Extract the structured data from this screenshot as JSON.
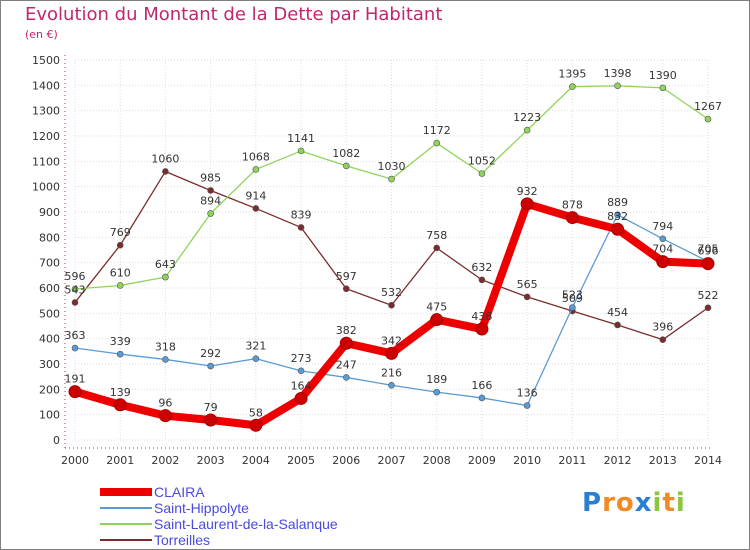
{
  "chart_data": {
    "type": "line",
    "title": "Evolution du Montant de la Dette par Habitant",
    "subtitle": "(en €)",
    "x": [
      "2000",
      "2001",
      "2002",
      "2003",
      "2004",
      "2005",
      "2006",
      "2007",
      "2008",
      "2009",
      "2010",
      "2011",
      "2012",
      "2013",
      "2014"
    ],
    "ylim": [
      0,
      1500
    ],
    "yticks": [
      0,
      100,
      200,
      300,
      400,
      500,
      600,
      700,
      800,
      900,
      1000,
      1100,
      1200,
      1300,
      1400,
      1500
    ],
    "grid": true,
    "legend_position": "bottom-left",
    "series": [
      {
        "name": "CLAIRA",
        "color": "#ee0000",
        "values": [
          191,
          139,
          96,
          79,
          58,
          164,
          382,
          342,
          475,
          438,
          932,
          878,
          832,
          704,
          696
        ]
      },
      {
        "name": "Saint-Hippolyte",
        "color": "#5b9bd5",
        "values": [
          363,
          339,
          318,
          292,
          321,
          273,
          247,
          216,
          189,
          166,
          136,
          523,
          889,
          794,
          705
        ]
      },
      {
        "name": "Saint-Laurent-de-la-Salanque",
        "color": "#8fd45a",
        "values": [
          596,
          610,
          643,
          894,
          1068,
          1141,
          1082,
          1030,
          1172,
          1052,
          1223,
          1395,
          1398,
          1390,
          1267
        ]
      },
      {
        "name": "Torreilles",
        "color": "#7b2c2c",
        "values": [
          543,
          769,
          1060,
          985,
          914,
          839,
          597,
          532,
          758,
          632,
          565,
          509,
          454,
          396,
          522
        ]
      }
    ]
  },
  "logo": {
    "text": "Proxiti",
    "letters": [
      "P",
      "r",
      "o",
      "x",
      "i",
      "t",
      "i"
    ],
    "colors": [
      "#2a7fd4",
      "#f08a24",
      "#f08a24",
      "#2a7fd4",
      "#8cc63f",
      "#f08a24",
      "#8cc63f"
    ]
  }
}
